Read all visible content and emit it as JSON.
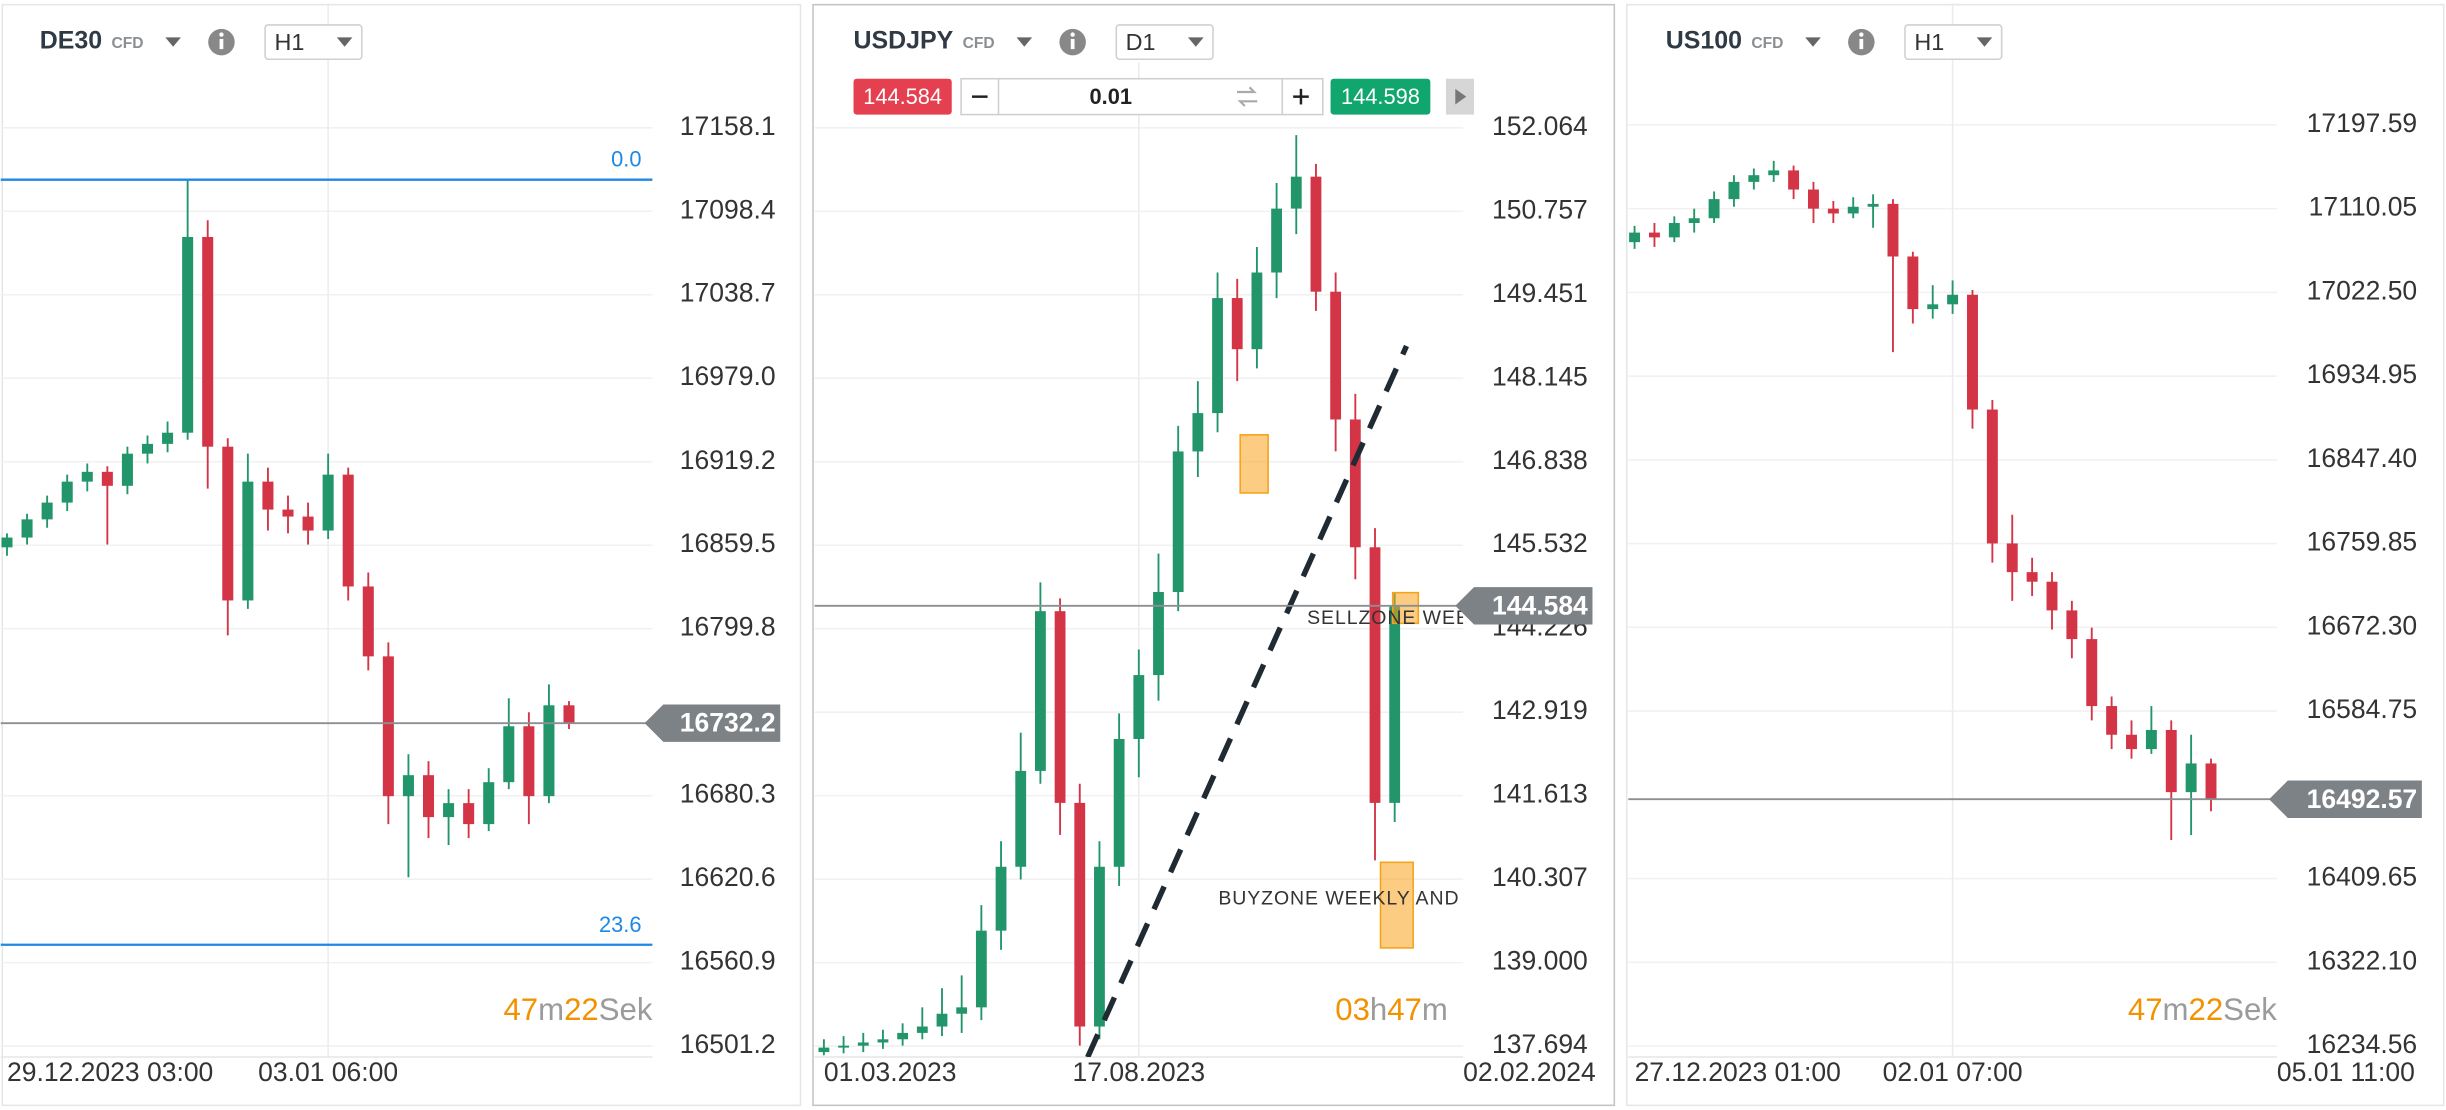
{
  "chart_data": [
    {
      "type": "candlestick",
      "symbol": "DE30",
      "badge": "CFD",
      "timeframe": "H1",
      "colors": {
        "up": "#22966a",
        "down": "#d33446",
        "line": "#1e88e5"
      },
      "ylim": [
        16493.4,
        17202.7
      ],
      "yticks": [
        17158.1,
        17098.4,
        17038.7,
        {
          "value": 16979,
          "label": "16979.0"
        },
        16919.2,
        16859.5,
        16799.8,
        16680.3,
        16620.6,
        16560.9,
        16501.2
      ],
      "xticks": [
        {
          "value": 0,
          "label": "29.12.2023 03:00"
        },
        {
          "value": 16,
          "label": "03.01 06:00"
        }
      ],
      "ohlc": [
        [
          16858,
          16868,
          16852,
          16865
        ],
        [
          16865,
          16882,
          16860,
          16878
        ],
        [
          16878,
          16895,
          16872,
          16890
        ],
        [
          16890,
          16910,
          16884,
          16905
        ],
        [
          16905,
          16918,
          16898,
          16912
        ],
        [
          16912,
          16916,
          16860,
          16902
        ],
        [
          16902,
          16930,
          16896,
          16925
        ],
        [
          16925,
          16938,
          16918,
          16932
        ],
        [
          16932,
          16948,
          16926,
          16940
        ],
        [
          16940,
          17121,
          16935,
          17080
        ],
        [
          17080,
          17092,
          16900,
          16930
        ],
        [
          16930,
          16936,
          16795,
          16820
        ],
        [
          16820,
          16925,
          16814,
          16905
        ],
        [
          16905,
          16915,
          16870,
          16885
        ],
        [
          16885,
          16895,
          16868,
          16880
        ],
        [
          16880,
          16890,
          16860,
          16870
        ],
        [
          16870,
          16925,
          16864,
          16910
        ],
        [
          16910,
          16915,
          16820,
          16830
        ],
        [
          16830,
          16840,
          16770,
          16780
        ],
        [
          16780,
          16790,
          16660,
          16680
        ],
        [
          16680,
          16710,
          16622,
          16695
        ],
        [
          16695,
          16705,
          16650,
          16665
        ],
        [
          16665,
          16685,
          16645,
          16675
        ],
        [
          16675,
          16685,
          16650,
          16660
        ],
        [
          16660,
          16700,
          16655,
          16690
        ],
        [
          16690,
          16750,
          16685,
          16730
        ],
        [
          16730,
          16740,
          16660,
          16680
        ],
        [
          16680,
          16760,
          16675,
          16745
        ],
        [
          16745,
          16748,
          16728,
          16732.2
        ]
      ],
      "last_price": 16732.2,
      "lines": [
        {
          "label": "0.0",
          "value": 17121
        },
        {
          "label": "23.6",
          "value": 16573.7
        }
      ],
      "timer": [
        "47",
        "m",
        "22",
        "Sek"
      ]
    },
    {
      "type": "candlestick",
      "symbol": "USDJPY",
      "badge": "CFD",
      "timeframe": "D1",
      "colors": {
        "up": "#22966a",
        "down": "#d33446",
        "zone": "#f7a21b"
      },
      "ylim": [
        137.523,
        152.113
      ],
      "yticks": [
        152.064,
        150.757,
        149.451,
        148.145,
        146.838,
        145.532,
        144.226,
        142.919,
        141.613,
        140.307,
        {
          "value": 139,
          "label": "139.000"
        },
        137.694
      ],
      "xticks": [
        {
          "value": 0,
          "label": "01.03.2023"
        },
        {
          "value": 16,
          "label": "17.08.2023"
        },
        {
          "value": 32.5,
          "label": "02.02.2024"
        }
      ],
      "ohlc": [
        [
          137.6,
          137.8,
          137.55,
          137.67
        ],
        [
          137.67,
          137.85,
          137.58,
          137.7
        ],
        [
          137.7,
          137.9,
          137.6,
          137.75
        ],
        [
          137.75,
          137.95,
          137.65,
          137.8
        ],
        [
          137.8,
          138.05,
          137.7,
          137.9
        ],
        [
          137.9,
          138.3,
          137.8,
          138
        ],
        [
          138,
          138.6,
          137.85,
          138.2
        ],
        [
          138.2,
          138.8,
          137.9,
          138.3
        ],
        [
          138.3,
          139.9,
          138.1,
          139.5
        ],
        [
          139.5,
          140.9,
          139.2,
          140.5
        ],
        [
          140.5,
          142.6,
          140.3,
          142
        ],
        [
          142,
          144.95,
          141.8,
          144.5
        ],
        [
          144.5,
          144.7,
          141,
          141.5
        ],
        [
          141.5,
          141.8,
          137.7,
          138
        ],
        [
          138,
          140.9,
          137.8,
          140.5
        ],
        [
          140.5,
          142.9,
          140.2,
          142.5
        ],
        [
          142.5,
          143.9,
          141.9,
          143.5
        ],
        [
          143.5,
          145.4,
          143.1,
          144.8
        ],
        [
          144.8,
          147.4,
          144.5,
          147
        ],
        [
          147,
          148.1,
          146.6,
          147.6
        ],
        [
          147.6,
          149.8,
          147.3,
          149.4
        ],
        [
          149.4,
          149.7,
          148.1,
          148.6
        ],
        [
          148.6,
          150.2,
          148.3,
          149.8
        ],
        [
          149.8,
          151.2,
          149.4,
          150.8
        ],
        [
          150.8,
          151.95,
          150.4,
          151.3
        ],
        [
          151.3,
          151.5,
          149.2,
          149.5
        ],
        [
          149.5,
          149.8,
          147,
          147.5
        ],
        [
          147.5,
          147.9,
          145,
          145.5
        ],
        [
          145.5,
          145.8,
          140.6,
          141.5
        ],
        [
          141.5,
          144.8,
          141.2,
          144.584
        ]
      ],
      "last_price": 144.584,
      "trade": {
        "sell": 144.584,
        "lot": 0.01,
        "buy": 144.598
      },
      "zones": [
        {
          "x": [
            21.15,
            22.57
          ],
          "y": [
            147.26,
            146.35
          ]
        },
        {
          "x": [
            28.9,
            30.2
          ],
          "y": [
            144.79,
            144.31
          ]
        },
        {
          "x": [
            28.28,
            29.94
          ],
          "y": [
            140.57,
            139.23
          ]
        }
      ],
      "trendline": {
        "x": [
          13.4,
          29.6
        ],
        "y": [
          137.52,
          148.65
        ]
      },
      "annotations": [
        {
          "text": "SELLZONE WEE",
          "x": 24.55,
          "y": 144.38
        },
        {
          "text": "BUYZONE WEEKLY AND M",
          "x": 20.04,
          "y": 139.99
        }
      ],
      "timer": [
        "03",
        "h",
        "47",
        "m"
      ]
    },
    {
      "type": "candlestick",
      "symbol": "US100",
      "badge": "CFD",
      "timeframe": "H1",
      "colors": {
        "up": "#22966a",
        "down": "#d33446"
      },
      "ylim": [
        16223.1,
        17259.7
      ],
      "yticks": [
        17197.59,
        17110.05,
        {
          "value": 17022.5,
          "label": "17022.50"
        },
        16934.95,
        {
          "value": 16847.4,
          "label": "16847.40"
        },
        16759.85,
        {
          "value": 16672.3,
          "label": "16672.30"
        },
        16584.75,
        16409.65,
        {
          "value": 16322.1,
          "label": "16322.10"
        },
        16234.56
      ],
      "xticks": [
        {
          "value": 0,
          "label": "27.12.2023 01:00"
        },
        {
          "value": 16,
          "label": "02.01 07:00"
        },
        {
          "value": 32.5,
          "label": "05.01 11:00"
        }
      ],
      "ohlc": [
        [
          17075,
          17092,
          17068,
          17085
        ],
        [
          17085,
          17095,
          17070,
          17080
        ],
        [
          17080,
          17102,
          17075,
          17095
        ],
        [
          17095,
          17110,
          17085,
          17100
        ],
        [
          17100,
          17128,
          17095,
          17120
        ],
        [
          17120,
          17145,
          17112,
          17138
        ],
        [
          17138,
          17152,
          17130,
          17145
        ],
        [
          17145,
          17160,
          17138,
          17150
        ],
        [
          17150,
          17155,
          17120,
          17130
        ],
        [
          17130,
          17138,
          17095,
          17110
        ],
        [
          17110,
          17118,
          17095,
          17105
        ],
        [
          17105,
          17122,
          17100,
          17112
        ],
        [
          17112,
          17125,
          17090,
          17115
        ],
        [
          17115,
          17120,
          16960,
          17060
        ],
        [
          17060,
          17065,
          16990,
          17005
        ],
        [
          17005,
          17030,
          16995,
          17010
        ],
        [
          17010,
          17035,
          17000,
          17020
        ],
        [
          17020,
          17025,
          16880,
          16900
        ],
        [
          16900,
          16910,
          16740,
          16760
        ],
        [
          16760,
          16790,
          16700,
          16730
        ],
        [
          16730,
          16745,
          16705,
          16720
        ],
        [
          16720,
          16730,
          16670,
          16690
        ],
        [
          16690,
          16700,
          16640,
          16660
        ],
        [
          16660,
          16672,
          16575,
          16590
        ],
        [
          16590,
          16600,
          16545,
          16560
        ],
        [
          16560,
          16575,
          16535,
          16545
        ],
        [
          16545,
          16590,
          16540,
          16565
        ],
        [
          16565,
          16575,
          16450,
          16500
        ],
        [
          16500,
          16560,
          16455,
          16530
        ],
        [
          16530,
          16535,
          16480,
          16492.57
        ]
      ],
      "last_price": 16492.57,
      "timer": [
        "47",
        "m",
        "22",
        "Sek"
      ]
    }
  ]
}
